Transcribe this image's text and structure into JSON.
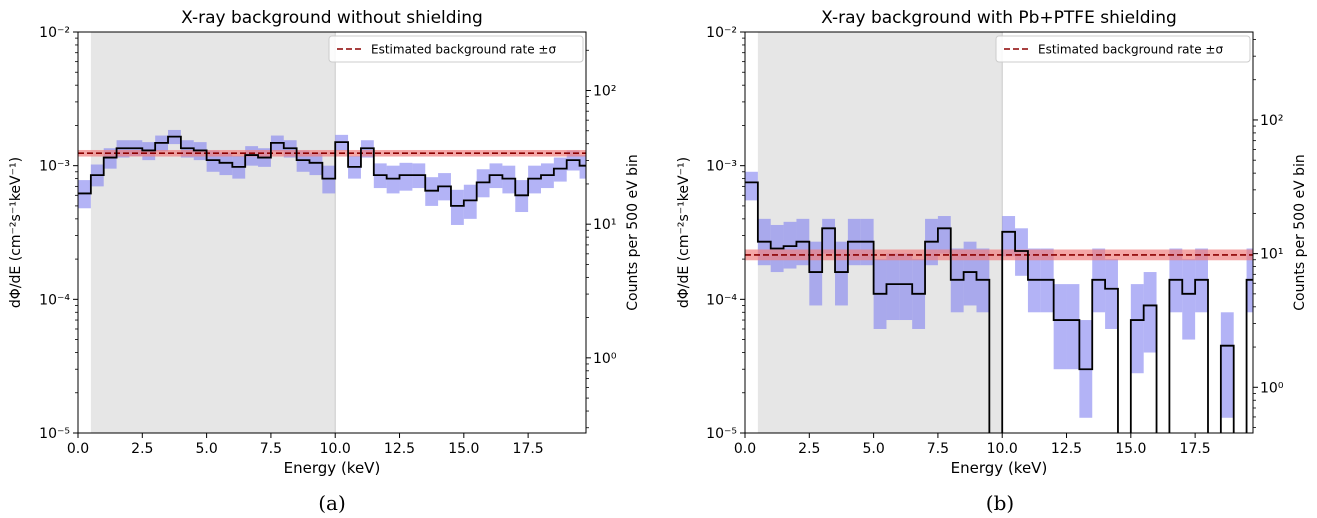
{
  "chart_data": [
    {
      "type": "step",
      "panel_label": "(a)",
      "title": "X-ray background without shielding",
      "xlabel": "Energy (keV)",
      "ylabel": "dΦ/dE (cm⁻²s⁻¹keV⁻¹)",
      "y2label": "Counts per 500 eV bin",
      "xlim": [
        0,
        19.75
      ],
      "ylim": [
        1e-05,
        0.01
      ],
      "yscale": "log",
      "xticks": [
        "0.0",
        "2.5",
        "5.0",
        "7.5",
        "10.0",
        "12.5",
        "15.0",
        "17.5"
      ],
      "yticks": [
        "10⁻⁵",
        "10⁻⁴",
        "10⁻³",
        "10⁻²"
      ],
      "y2ticks": [
        "10⁰",
        "10¹",
        "10²"
      ],
      "y2_counts_per_flux": 27400,
      "shaded_region": [
        0.5,
        10.0
      ],
      "legend": {
        "label": "Estimated background rate ±σ",
        "location": "upper right"
      },
      "background_rate": {
        "value": 0.00124,
        "lower": 0.00117,
        "upper": 0.00131
      },
      "bin_width": 0.5,
      "series": [
        {
          "name": "dΦ/dE",
          "x_edges": [
            0,
            0.5,
            1,
            1.5,
            2,
            2.5,
            3,
            3.5,
            4,
            4.5,
            5,
            5.5,
            6,
            6.5,
            7,
            7.5,
            8,
            8.5,
            9,
            9.5,
            10,
            10.5,
            11,
            11.5,
            12,
            12.5,
            13,
            13.5,
            14,
            14.5,
            15,
            15.5,
            16,
            16.5,
            17,
            17.5,
            18,
            18.5,
            19,
            19.5,
            20
          ],
          "values": [
            0.00062,
            0.00085,
            0.00115,
            0.00135,
            0.00135,
            0.0013,
            0.00148,
            0.00165,
            0.00135,
            0.0013,
            0.0011,
            0.00105,
            0.00098,
            0.0012,
            0.00115,
            0.00148,
            0.00135,
            0.0011,
            0.00105,
            0.0008,
            0.0015,
            0.00098,
            0.00135,
            0.00085,
            0.0008,
            0.00085,
            0.00085,
            0.00065,
            0.0007,
            0.0005,
            0.00055,
            0.00075,
            0.00085,
            0.0008,
            0.0006,
            0.0008,
            0.00085,
            0.00095,
            0.0011,
            0.001
          ],
          "lower": [
            0.00048,
            0.0007,
            0.00095,
            0.00115,
            0.00118,
            0.0011,
            0.00128,
            0.00145,
            0.00115,
            0.0011,
            0.0009,
            0.00085,
            0.0008,
            0.001,
            0.00098,
            0.00128,
            0.00115,
            0.0009,
            0.00085,
            0.00062,
            0.0013,
            0.0008,
            0.00115,
            0.00068,
            0.00062,
            0.00065,
            0.00068,
            0.0005,
            0.00055,
            0.00036,
            0.0004,
            0.00058,
            0.00068,
            0.00062,
            0.00045,
            0.00062,
            0.00068,
            0.00076,
            0.00092,
            0.0008
          ],
          "upper": [
            0.00078,
            0.00102,
            0.00135,
            0.00155,
            0.00155,
            0.0015,
            0.00168,
            0.00185,
            0.00155,
            0.0015,
            0.0013,
            0.00125,
            0.00118,
            0.0014,
            0.00135,
            0.00168,
            0.00155,
            0.0013,
            0.00125,
            0.001,
            0.0017,
            0.00118,
            0.00155,
            0.00104,
            0.001,
            0.00105,
            0.00104,
            0.00082,
            0.00088,
            0.00066,
            0.00072,
            0.00094,
            0.00104,
            0.001,
            0.00078,
            0.001,
            0.00104,
            0.00115,
            0.0013,
            0.0012
          ]
        }
      ],
      "colors": {
        "step": "#000000",
        "band": "#8080f0",
        "rate_line": "#8b0000",
        "rate_band": "#f08080",
        "shade": "#e6e6e6"
      }
    },
    {
      "type": "step",
      "panel_label": "(b)",
      "title": "X-ray background with Pb+PTFE shielding",
      "xlabel": "Energy (keV)",
      "ylabel": "dΦ/dE (cm⁻²s⁻¹keV⁻¹)",
      "y2label": "Counts per 500 eV bin",
      "xlim": [
        0,
        19.75
      ],
      "ylim": [
        1e-05,
        0.01
      ],
      "yscale": "log",
      "xticks": [
        "0.0",
        "2.5",
        "5.0",
        "7.5",
        "10.0",
        "12.5",
        "15.0",
        "17.5"
      ],
      "yticks": [
        "10⁻⁵",
        "10⁻⁴",
        "10⁻³",
        "10⁻²"
      ],
      "y2ticks": [
        "10⁰",
        "10¹",
        "10²"
      ],
      "y2_counts_per_flux": 45500,
      "shaded_region": [
        0.5,
        10.0
      ],
      "legend": {
        "label": "Estimated background rate ±σ",
        "location": "upper right"
      },
      "background_rate": {
        "value": 0.000215,
        "lower": 0.000196,
        "upper": 0.000236
      },
      "bin_width": 0.5,
      "series": [
        {
          "name": "dΦ/dE",
          "x_edges": [
            0,
            0.5,
            1,
            1.5,
            2,
            2.5,
            3,
            3.5,
            4,
            4.5,
            5,
            5.5,
            6,
            6.5,
            7,
            7.5,
            8,
            8.5,
            9,
            9.5,
            10,
            10.5,
            11,
            11.5,
            12,
            12.5,
            13,
            13.5,
            14,
            14.5,
            15,
            15.5,
            16,
            16.5,
            17,
            17.5,
            18,
            18.5,
            19,
            19.5,
            20
          ],
          "values": [
            0.00075,
            0.00027,
            0.00024,
            0.00025,
            0.00027,
            0.00016,
            0.00034,
            0.00016,
            0.00027,
            0.00027,
            0.00011,
            0.00013,
            0.00013,
            0.00011,
            0.00027,
            0.00034,
            0.00014,
            0.00016,
            0.00014,
            0.0,
            0.00032,
            0.00023,
            0.00014,
            0.00014,
            7e-05,
            7e-05,
            3e-05,
            0.00014,
            0.00012,
            0.0,
            7e-05,
            9e-05,
            0.0,
            0.00014,
            0.00011,
            0.00014,
            0.0,
            4.5e-05,
            0.0,
            0.00014
          ],
          "lower": [
            0.00055,
            0.00018,
            0.00016,
            0.00017,
            0.00018,
            9e-05,
            0.00022,
            9e-05,
            0.00018,
            0.00018,
            6e-05,
            7e-05,
            7e-05,
            6e-05,
            0.00018,
            0.00022,
            8e-05,
            9e-05,
            8e-05,
            0.0,
            0.00021,
            0.00015,
            8e-05,
            8e-05,
            3e-05,
            3e-05,
            1.3e-05,
            8e-05,
            6e-05,
            0.0,
            2.8e-05,
            4e-05,
            0.0,
            8e-05,
            5e-05,
            8e-05,
            0.0,
            1.3e-05,
            0.0,
            8e-05
          ],
          "upper": [
            0.0009,
            0.0004,
            0.00036,
            0.00038,
            0.0004,
            0.00027,
            0.0004,
            0.00027,
            0.0004,
            0.0004,
            0.0002,
            0.00022,
            0.00022,
            0.0002,
            0.0004,
            0.00042,
            0.00024,
            0.00027,
            0.00024,
            0.0,
            0.00042,
            0.00034,
            0.00024,
            0.00024,
            0.00013,
            0.00013,
            7e-05,
            0.00024,
            0.0002,
            0.0,
            0.00013,
            0.00016,
            0.0,
            0.00024,
            0.0002,
            0.00024,
            0.0,
            8e-05,
            0.0,
            0.00024
          ]
        }
      ],
      "colors": {
        "step": "#000000",
        "band": "#8080f0",
        "rate_line": "#8b0000",
        "rate_band": "#f08080",
        "shade": "#e6e6e6"
      }
    }
  ]
}
